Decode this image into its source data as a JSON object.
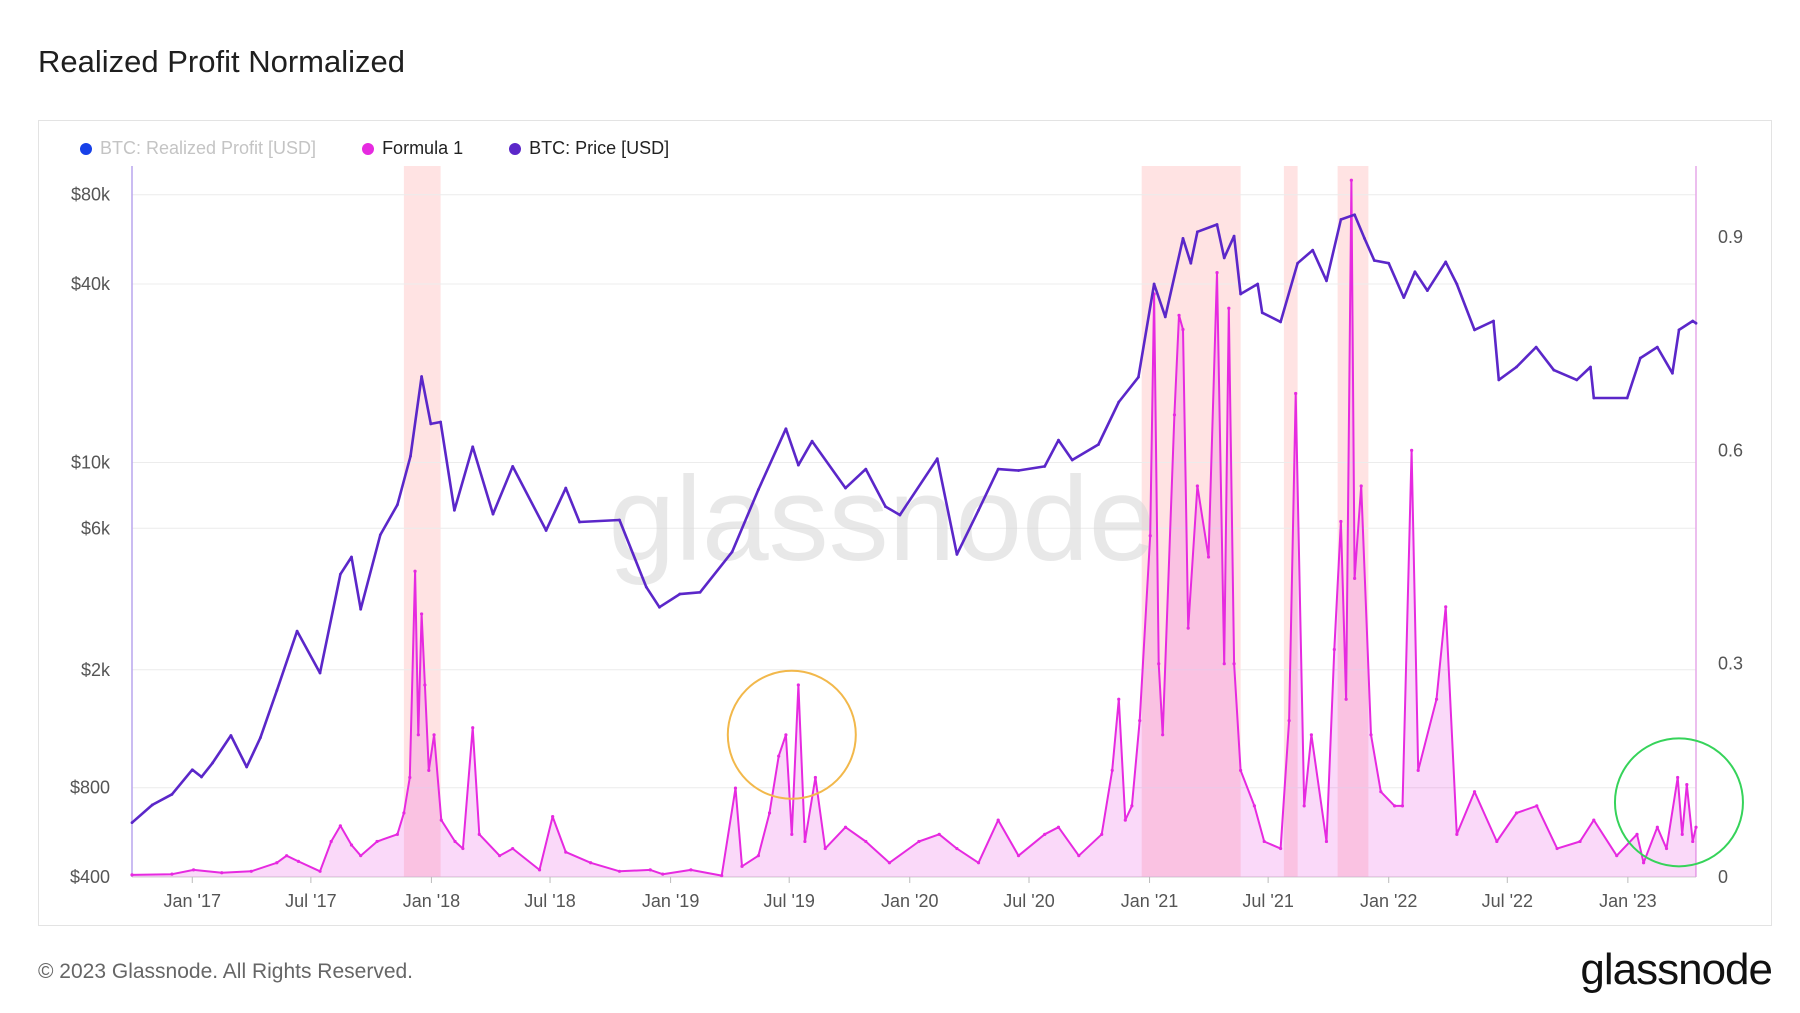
{
  "title": "Realized Profit Normalized",
  "footer": "© 2023 Glassnode. All Rights Reserved.",
  "brand": "glassnode",
  "watermark": "glassnode",
  "legend": [
    {
      "label": "BTC: Realized Profit [USD]",
      "color": "#1740e8",
      "disabled": true
    },
    {
      "label": "Formula 1",
      "color": "#e62ae0",
      "disabled": false
    },
    {
      "label": "BTC: Price [USD]",
      "color": "#5b27c9",
      "disabled": false
    }
  ],
  "chart_data": {
    "type": "line",
    "title": "Realized Profit Normalized",
    "x_range": [
      "2016-10-01",
      "2023-04-15"
    ],
    "x_ticks": [
      {
        "date": "2017-01-01",
        "label": "Jan '17"
      },
      {
        "date": "2017-07-01",
        "label": "Jul '17"
      },
      {
        "date": "2018-01-01",
        "label": "Jan '18"
      },
      {
        "date": "2018-07-01",
        "label": "Jul '18"
      },
      {
        "date": "2019-01-01",
        "label": "Jan '19"
      },
      {
        "date": "2019-07-01",
        "label": "Jul '19"
      },
      {
        "date": "2020-01-01",
        "label": "Jan '20"
      },
      {
        "date": "2020-07-01",
        "label": "Jul '20"
      },
      {
        "date": "2021-01-01",
        "label": "Jan '21"
      },
      {
        "date": "2021-07-01",
        "label": "Jul '21"
      },
      {
        "date": "2022-01-01",
        "label": "Jan '22"
      },
      {
        "date": "2022-07-01",
        "label": "Jul '22"
      },
      {
        "date": "2023-01-01",
        "label": "Jan '23"
      }
    ],
    "y_left": {
      "scale": "log",
      "range": [
        400,
        100000
      ],
      "ticks": [
        {
          "value": 400,
          "label": "$400"
        },
        {
          "value": 800,
          "label": "$800"
        },
        {
          "value": 2000,
          "label": "$2k"
        },
        {
          "value": 6000,
          "label": "$6k"
        },
        {
          "value": 10000,
          "label": "$10k"
        },
        {
          "value": 40000,
          "label": "$40k"
        },
        {
          "value": 80000,
          "label": "$80k"
        }
      ]
    },
    "y_right": {
      "scale": "linear",
      "range": [
        0,
        1.0
      ],
      "ticks": [
        {
          "value": 0,
          "label": "0"
        },
        {
          "value": 0.3,
          "label": "0.3"
        },
        {
          "value": 0.6,
          "label": "0.6"
        },
        {
          "value": 0.9,
          "label": "0.9"
        }
      ]
    },
    "highlight_bands": [
      {
        "start": "2017-11-20",
        "end": "2018-01-15"
      },
      {
        "start": "2020-12-20",
        "end": "2021-05-20"
      },
      {
        "start": "2021-07-25",
        "end": "2021-08-15"
      },
      {
        "start": "2021-10-15",
        "end": "2021-12-01"
      }
    ],
    "annotations": [
      {
        "type": "circle",
        "date": "2019-07-05",
        "value": 0.2,
        "color": "#f2b84b"
      },
      {
        "type": "circle",
        "date": "2023-03-20",
        "value": 0.105,
        "color": "#36d35a"
      }
    ],
    "series": [
      {
        "name": "BTC: Price [USD]",
        "axis": "left",
        "color": "#5b27c9",
        "points": [
          [
            "2016-10-01",
            610
          ],
          [
            "2016-11-01",
            700
          ],
          [
            "2016-12-01",
            760
          ],
          [
            "2017-01-01",
            920
          ],
          [
            "2017-01-15",
            870
          ],
          [
            "2017-02-01",
            970
          ],
          [
            "2017-03-01",
            1200
          ],
          [
            "2017-03-25",
            940
          ],
          [
            "2017-04-15",
            1180
          ],
          [
            "2017-05-10",
            1700
          ],
          [
            "2017-06-10",
            2700
          ],
          [
            "2017-07-15",
            1950
          ],
          [
            "2017-08-15",
            4200
          ],
          [
            "2017-09-01",
            4800
          ],
          [
            "2017-09-15",
            3200
          ],
          [
            "2017-10-15",
            5700
          ],
          [
            "2017-11-10",
            7200
          ],
          [
            "2017-11-30",
            10500
          ],
          [
            "2017-12-17",
            19500
          ],
          [
            "2017-12-31",
            13500
          ],
          [
            "2018-01-15",
            13700
          ],
          [
            "2018-02-05",
            6900
          ],
          [
            "2018-03-05",
            11300
          ],
          [
            "2018-04-05",
            6700
          ],
          [
            "2018-05-05",
            9700
          ],
          [
            "2018-06-25",
            5900
          ],
          [
            "2018-07-25",
            8200
          ],
          [
            "2018-08-15",
            6300
          ],
          [
            "2018-10-15",
            6400
          ],
          [
            "2018-11-25",
            3800
          ],
          [
            "2018-12-15",
            3250
          ],
          [
            "2019-01-15",
            3600
          ],
          [
            "2019-02-15",
            3650
          ],
          [
            "2019-04-05",
            5000
          ],
          [
            "2019-05-15",
            8100
          ],
          [
            "2019-06-26",
            13000
          ],
          [
            "2019-07-15",
            9800
          ],
          [
            "2019-08-05",
            11800
          ],
          [
            "2019-09-25",
            8200
          ],
          [
            "2019-10-26",
            9500
          ],
          [
            "2019-11-25",
            7100
          ],
          [
            "2019-12-17",
            6650
          ],
          [
            "2020-02-12",
            10300
          ],
          [
            "2020-03-13",
            4900
          ],
          [
            "2020-04-15",
            6900
          ],
          [
            "2020-05-15",
            9500
          ],
          [
            "2020-06-15",
            9400
          ],
          [
            "2020-07-25",
            9700
          ],
          [
            "2020-08-15",
            11900
          ],
          [
            "2020-09-05",
            10200
          ],
          [
            "2020-10-15",
            11500
          ],
          [
            "2020-11-15",
            16000
          ],
          [
            "2020-12-15",
            19400
          ],
          [
            "2021-01-08",
            40000
          ],
          [
            "2021-01-25",
            31000
          ],
          [
            "2021-02-21",
            57000
          ],
          [
            "2021-03-05",
            47000
          ],
          [
            "2021-03-15",
            60000
          ],
          [
            "2021-04-14",
            63500
          ],
          [
            "2021-04-25",
            49000
          ],
          [
            "2021-05-10",
            58000
          ],
          [
            "2021-05-20",
            37000
          ],
          [
            "2021-06-15",
            40000
          ],
          [
            "2021-06-22",
            32000
          ],
          [
            "2021-07-20",
            29800
          ],
          [
            "2021-08-15",
            47000
          ],
          [
            "2021-09-07",
            52000
          ],
          [
            "2021-09-28",
            41000
          ],
          [
            "2021-10-20",
            66000
          ],
          [
            "2021-11-10",
            68500
          ],
          [
            "2021-11-25",
            57000
          ],
          [
            "2021-12-10",
            48000
          ],
          [
            "2022-01-01",
            47000
          ],
          [
            "2022-01-24",
            36000
          ],
          [
            "2022-02-10",
            44000
          ],
          [
            "2022-03-01",
            38000
          ],
          [
            "2022-03-29",
            47500
          ],
          [
            "2022-04-15",
            40000
          ],
          [
            "2022-05-12",
            28000
          ],
          [
            "2022-06-10",
            30000
          ],
          [
            "2022-06-18",
            19000
          ],
          [
            "2022-07-15",
            21000
          ],
          [
            "2022-08-14",
            24500
          ],
          [
            "2022-09-10",
            20500
          ],
          [
            "2022-10-15",
            19000
          ],
          [
            "2022-11-05",
            21000
          ],
          [
            "2022-11-10",
            16500
          ],
          [
            "2022-12-31",
            16500
          ],
          [
            "2023-01-20",
            22500
          ],
          [
            "2023-02-15",
            24500
          ],
          [
            "2023-03-10",
            20000
          ],
          [
            "2023-03-20",
            28000
          ],
          [
            "2023-04-10",
            30000
          ],
          [
            "2023-04-15",
            29500
          ]
        ]
      },
      {
        "name": "Formula 1",
        "axis": "right",
        "color": "#e62ae0",
        "points": [
          [
            "2016-10-01",
            0.003
          ],
          [
            "2016-12-01",
            0.004
          ],
          [
            "2017-01-03",
            0.01
          ],
          [
            "2017-02-15",
            0.006
          ],
          [
            "2017-04-01",
            0.008
          ],
          [
            "2017-05-10",
            0.02
          ],
          [
            "2017-05-25",
            0.03
          ],
          [
            "2017-06-12",
            0.022
          ],
          [
            "2017-07-15",
            0.008
          ],
          [
            "2017-08-01",
            0.05
          ],
          [
            "2017-08-15",
            0.072
          ],
          [
            "2017-09-01",
            0.045
          ],
          [
            "2017-09-15",
            0.03
          ],
          [
            "2017-10-10",
            0.05
          ],
          [
            "2017-11-10",
            0.06
          ],
          [
            "2017-11-20",
            0.09
          ],
          [
            "2017-11-29",
            0.14
          ],
          [
            "2017-12-07",
            0.43
          ],
          [
            "2017-12-12",
            0.2
          ],
          [
            "2017-12-17",
            0.37
          ],
          [
            "2017-12-22",
            0.27
          ],
          [
            "2017-12-28",
            0.15
          ],
          [
            "2018-01-05",
            0.2
          ],
          [
            "2018-01-16",
            0.08
          ],
          [
            "2018-02-06",
            0.05
          ],
          [
            "2018-02-18",
            0.04
          ],
          [
            "2018-03-05",
            0.21
          ],
          [
            "2018-03-15",
            0.06
          ],
          [
            "2018-04-15",
            0.03
          ],
          [
            "2018-05-05",
            0.04
          ],
          [
            "2018-06-15",
            0.01
          ],
          [
            "2018-07-05",
            0.085
          ],
          [
            "2018-07-25",
            0.035
          ],
          [
            "2018-09-01",
            0.02
          ],
          [
            "2018-10-15",
            0.008
          ],
          [
            "2018-12-01",
            0.01
          ],
          [
            "2018-12-20",
            0.004
          ],
          [
            "2019-02-01",
            0.01
          ],
          [
            "2019-03-20",
            0.002
          ],
          [
            "2019-04-10",
            0.125
          ],
          [
            "2019-04-20",
            0.015
          ],
          [
            "2019-05-15",
            0.03
          ],
          [
            "2019-06-01",
            0.09
          ],
          [
            "2019-06-15",
            0.17
          ],
          [
            "2019-06-26",
            0.2
          ],
          [
            "2019-07-05",
            0.06
          ],
          [
            "2019-07-15",
            0.27
          ],
          [
            "2019-07-25",
            0.05
          ],
          [
            "2019-08-10",
            0.14
          ],
          [
            "2019-08-25",
            0.04
          ],
          [
            "2019-09-25",
            0.07
          ],
          [
            "2019-10-26",
            0.05
          ],
          [
            "2019-12-01",
            0.02
          ],
          [
            "2020-01-15",
            0.05
          ],
          [
            "2020-02-15",
            0.06
          ],
          [
            "2020-03-13",
            0.04
          ],
          [
            "2020-04-15",
            0.02
          ],
          [
            "2020-05-15",
            0.08
          ],
          [
            "2020-06-15",
            0.03
          ],
          [
            "2020-07-25",
            0.06
          ],
          [
            "2020-08-15",
            0.07
          ],
          [
            "2020-09-15",
            0.03
          ],
          [
            "2020-10-20",
            0.06
          ],
          [
            "2020-11-05",
            0.15
          ],
          [
            "2020-11-15",
            0.25
          ],
          [
            "2020-11-25",
            0.08
          ],
          [
            "2020-12-05",
            0.1
          ],
          [
            "2020-12-17",
            0.22
          ],
          [
            "2021-01-02",
            0.48
          ],
          [
            "2021-01-08",
            0.82
          ],
          [
            "2021-01-15",
            0.3
          ],
          [
            "2021-01-21",
            0.2
          ],
          [
            "2021-02-08",
            0.65
          ],
          [
            "2021-02-15",
            0.79
          ],
          [
            "2021-02-21",
            0.77
          ],
          [
            "2021-03-01",
            0.35
          ],
          [
            "2021-03-15",
            0.55
          ],
          [
            "2021-04-01",
            0.45
          ],
          [
            "2021-04-14",
            0.85
          ],
          [
            "2021-04-25",
            0.3
          ],
          [
            "2021-05-02",
            0.8
          ],
          [
            "2021-05-10",
            0.3
          ],
          [
            "2021-05-20",
            0.15
          ],
          [
            "2021-06-10",
            0.1
          ],
          [
            "2021-06-25",
            0.05
          ],
          [
            "2021-07-20",
            0.04
          ],
          [
            "2021-08-02",
            0.22
          ],
          [
            "2021-08-12",
            0.68
          ],
          [
            "2021-08-25",
            0.1
          ],
          [
            "2021-09-05",
            0.2
          ],
          [
            "2021-09-28",
            0.05
          ],
          [
            "2021-10-10",
            0.32
          ],
          [
            "2021-10-20",
            0.5
          ],
          [
            "2021-10-28",
            0.25
          ],
          [
            "2021-11-05",
            0.98
          ],
          [
            "2021-11-10",
            0.42
          ],
          [
            "2021-11-20",
            0.55
          ],
          [
            "2021-12-05",
            0.2
          ],
          [
            "2021-12-20",
            0.12
          ],
          [
            "2022-01-10",
            0.1
          ],
          [
            "2022-01-22",
            0.1
          ],
          [
            "2022-02-05",
            0.6
          ],
          [
            "2022-02-15",
            0.15
          ],
          [
            "2022-03-15",
            0.25
          ],
          [
            "2022-03-29",
            0.38
          ],
          [
            "2022-04-15",
            0.06
          ],
          [
            "2022-05-12",
            0.12
          ],
          [
            "2022-06-15",
            0.05
          ],
          [
            "2022-07-15",
            0.09
          ],
          [
            "2022-08-15",
            0.1
          ],
          [
            "2022-09-15",
            0.04
          ],
          [
            "2022-10-20",
            0.05
          ],
          [
            "2022-11-10",
            0.08
          ],
          [
            "2022-12-15",
            0.03
          ],
          [
            "2023-01-15",
            0.06
          ],
          [
            "2023-01-25",
            0.02
          ],
          [
            "2023-02-15",
            0.07
          ],
          [
            "2023-03-01",
            0.04
          ],
          [
            "2023-03-18",
            0.14
          ],
          [
            "2023-03-25",
            0.06
          ],
          [
            "2023-04-01",
            0.13
          ],
          [
            "2023-04-10",
            0.05
          ],
          [
            "2023-04-15",
            0.07
          ]
        ]
      }
    ]
  }
}
